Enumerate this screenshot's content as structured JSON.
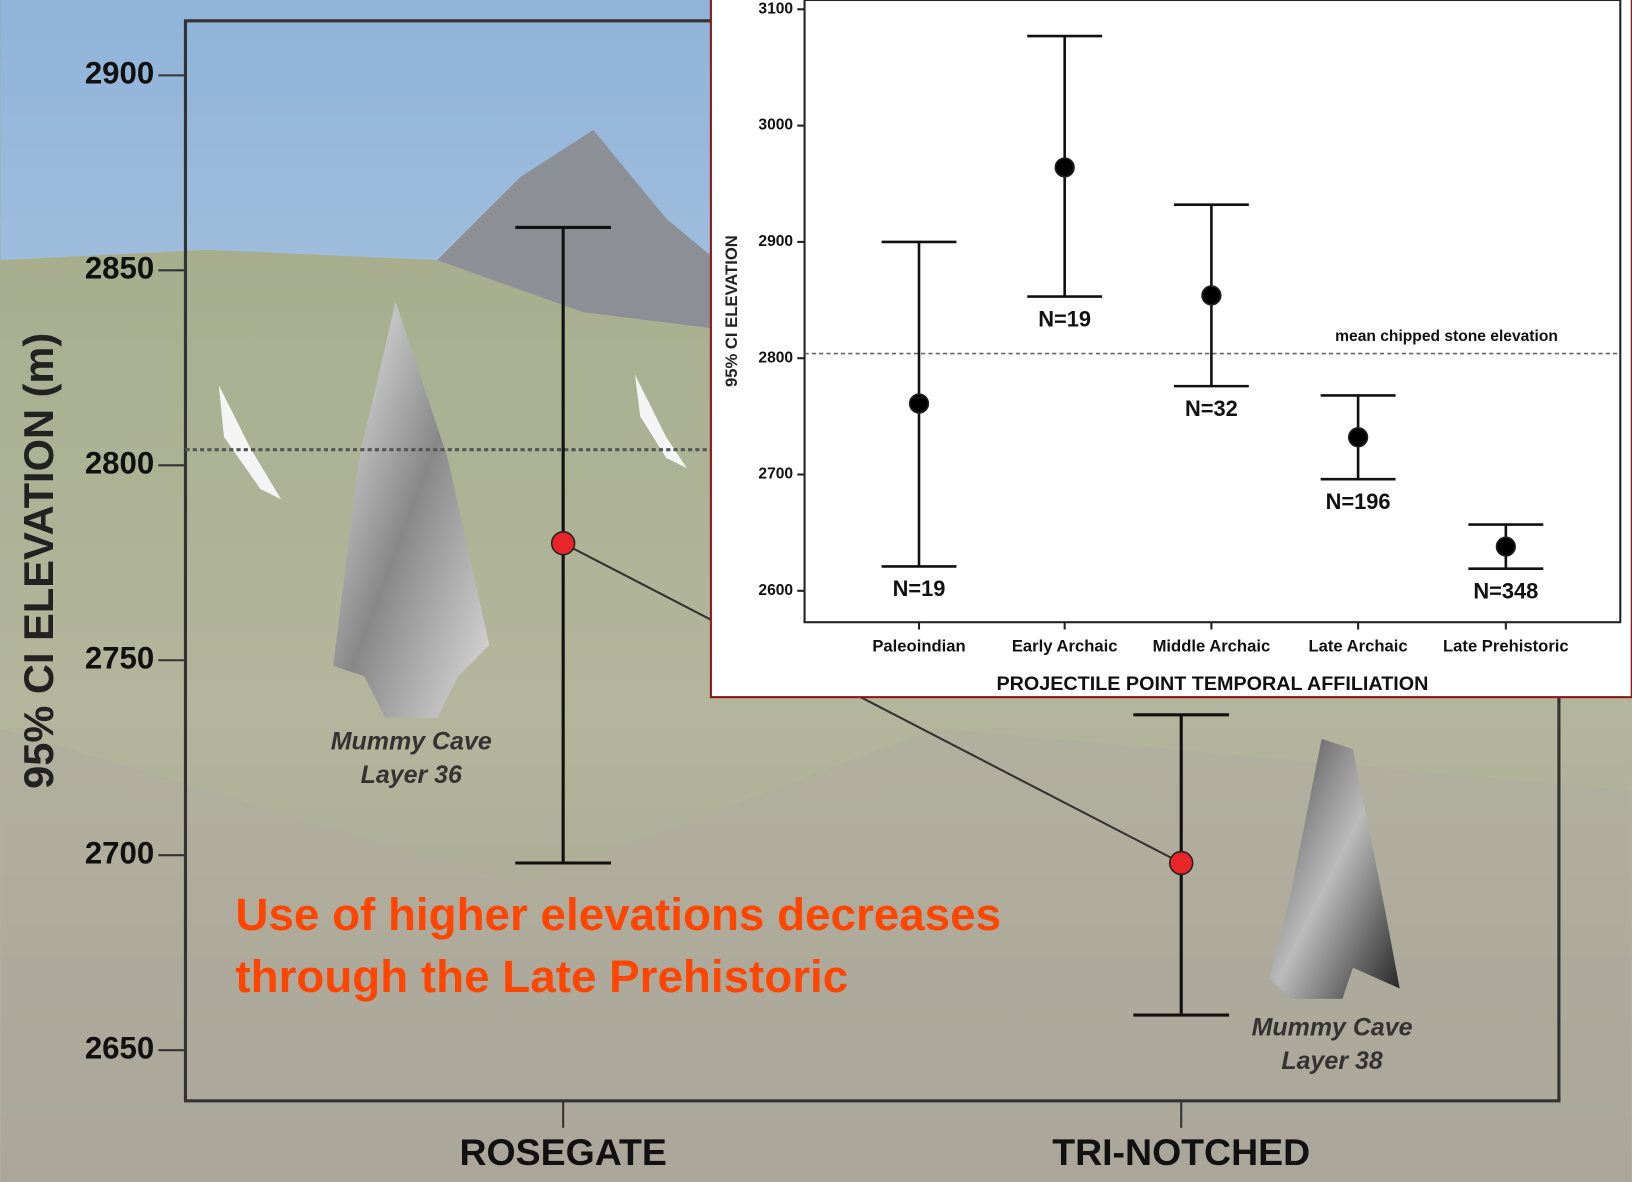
{
  "chart_data": [
    {
      "type": "errorbar",
      "y_label": "95% CI ELEVATION (m)",
      "categories": [
        "ROSEGATE",
        "TRI-NOTCHED"
      ],
      "values": [
        2780,
        2698
      ],
      "upper": [
        2861,
        2736
      ],
      "lower": [
        2698,
        2659
      ],
      "color": "#e8262a",
      "ylim": [
        2637,
        2914
      ],
      "yticks": [
        2650,
        2700,
        2750,
        2800,
        2850,
        2900
      ],
      "reference_line": 2804,
      "notes": [
        [
          "Mummy Cave",
          "Layer 36"
        ],
        [
          "Mummy Cave",
          "Layer 38"
        ]
      ],
      "caption": [
        "Use of higher elevations decreases",
        "through the Late Prehistoric"
      ],
      "caption_color": "#ff4500"
    },
    {
      "type": "errorbar",
      "y_label": "95% CI ELEVATION",
      "x_label": "PROJECTILE POINT TEMPORAL AFFILIATION",
      "categories": [
        "Paleoindian",
        "Early Archaic",
        "Middle Archaic",
        "Late Archaic",
        "Late Prehistoric"
      ],
      "values": [
        2761,
        2964,
        2854,
        2732,
        2638
      ],
      "upper": [
        2900,
        3077,
        2932,
        2768,
        2657
      ],
      "lower": [
        2621,
        2853,
        2776,
        2696,
        2619
      ],
      "sample_labels": [
        "N=19",
        "N=19",
        "N=32",
        "N=196",
        "N=348"
      ],
      "color": "#000000",
      "ylim": [
        2573,
        3108
      ],
      "yticks": [
        2600,
        2700,
        2800,
        2900,
        3000,
        3100
      ],
      "reference_line": 2804,
      "reference_label": "mean chipped stone elevation"
    }
  ]
}
